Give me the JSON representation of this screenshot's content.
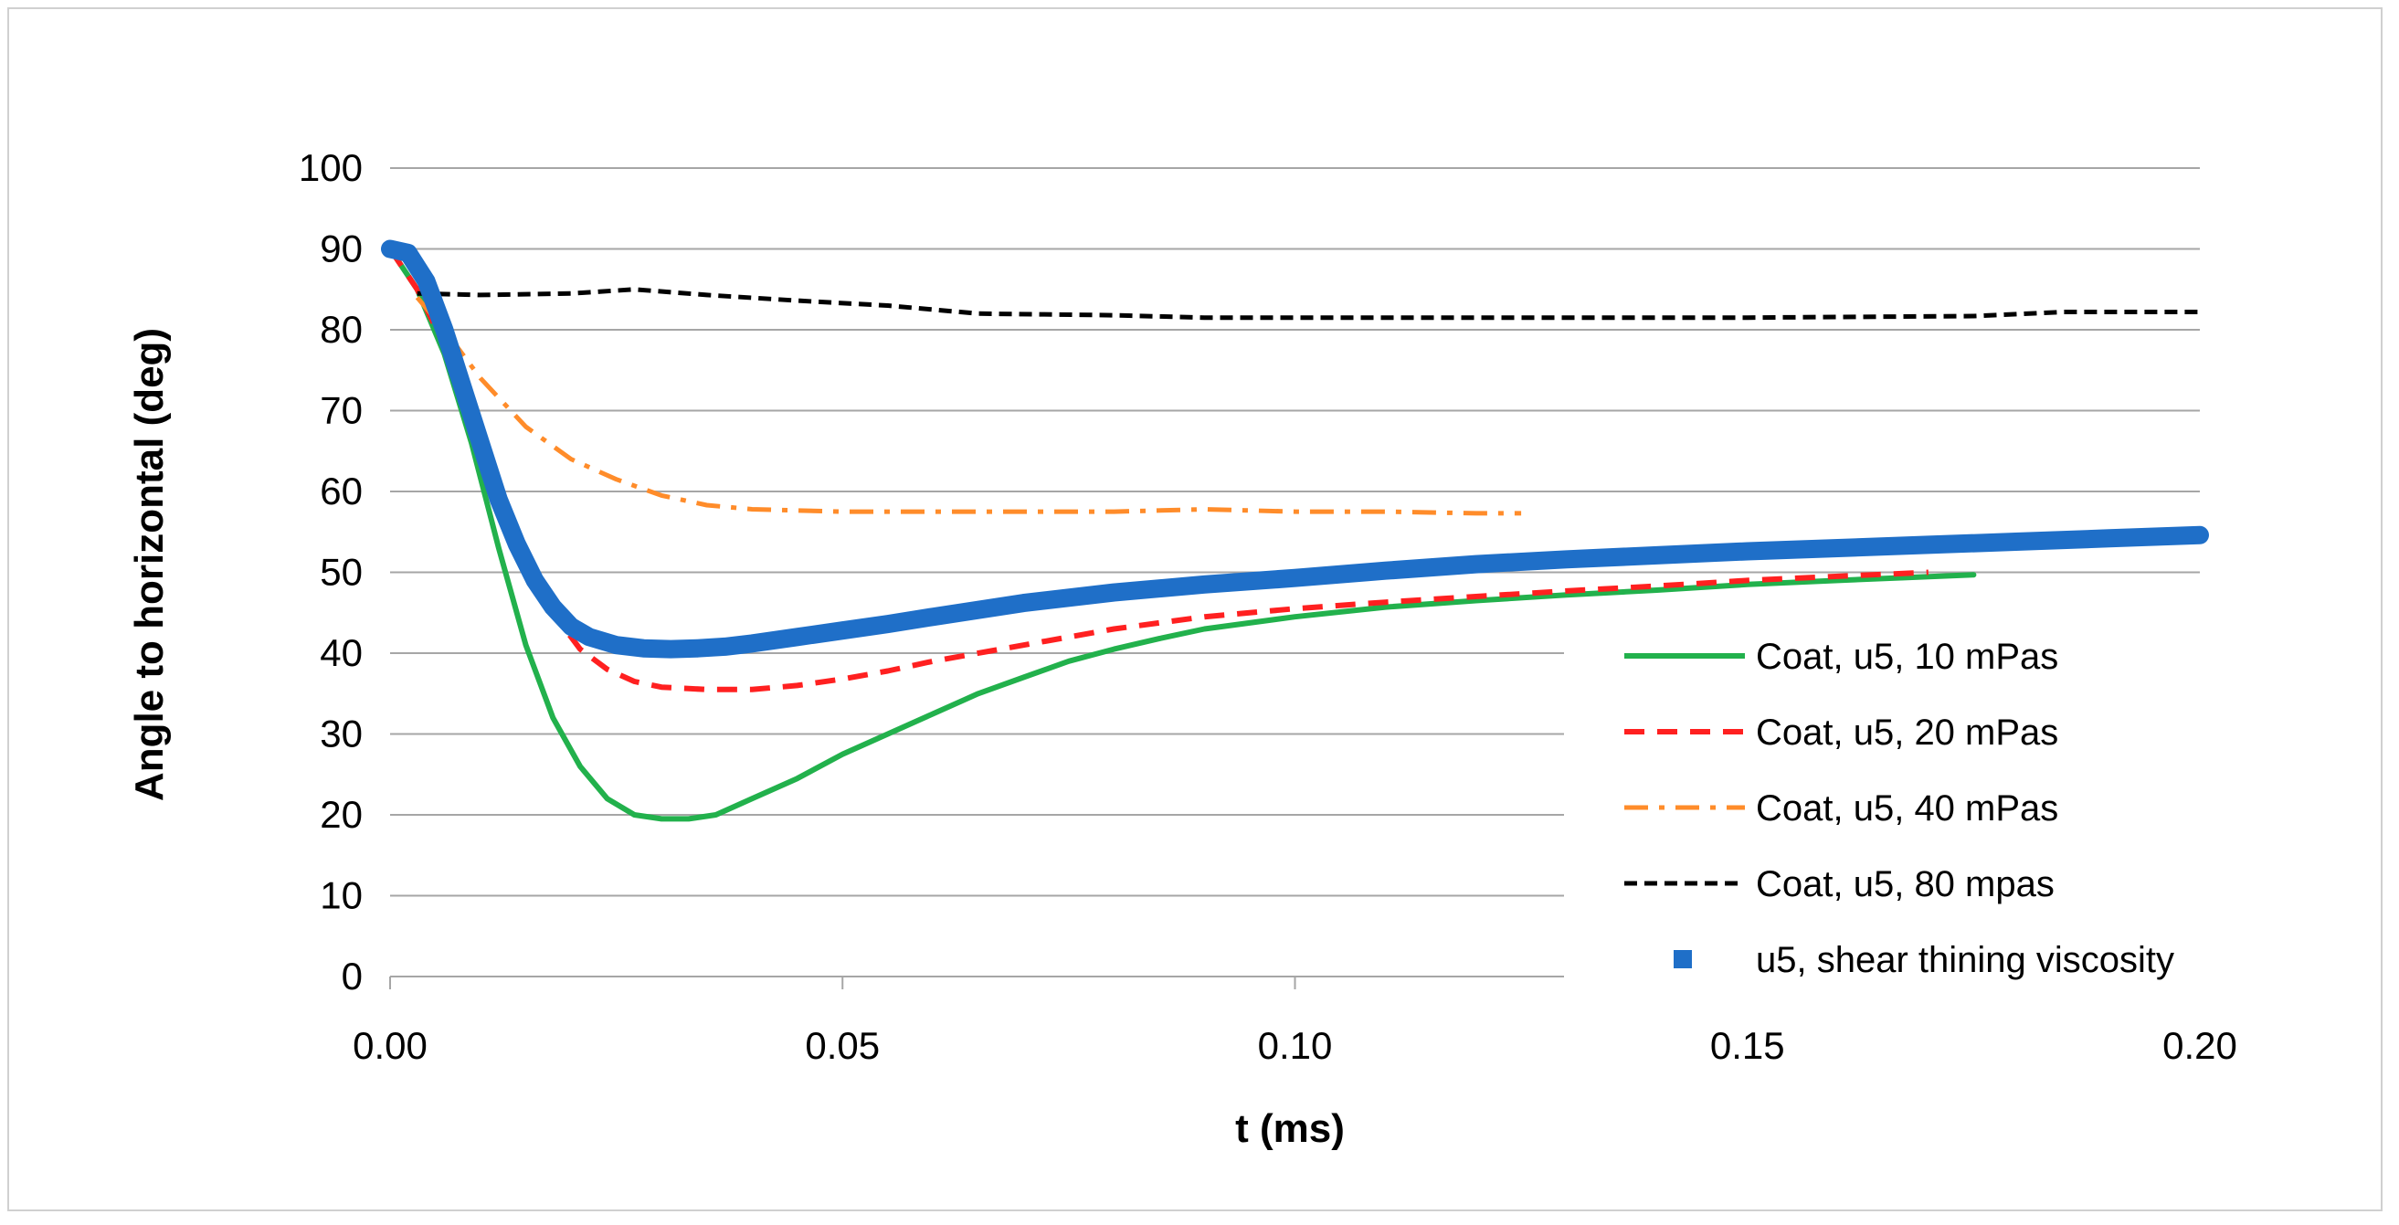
{
  "chart_data": {
    "type": "line",
    "title": "",
    "xlabel": "t (ms)",
    "ylabel": "Angle to horizontal (deg)",
    "xlim": [
      0,
      0.2
    ],
    "ylim": [
      0,
      100
    ],
    "xticks": [
      "0.00",
      "0.05",
      "0.10",
      "0.15",
      "0.20"
    ],
    "xtick_values": [
      0,
      0.05,
      0.1,
      0.15,
      0.2
    ],
    "yticks": [
      "0",
      "10",
      "20",
      "30",
      "40",
      "50",
      "60",
      "70",
      "80",
      "90",
      "100"
    ],
    "ytick_values": [
      0,
      10,
      20,
      30,
      40,
      50,
      60,
      70,
      80,
      90,
      100
    ],
    "grid": "horizontal",
    "legend_position": "bottom-right",
    "series": [
      {
        "name": "Coat, u5, 10 mPas",
        "color": "#22b14c",
        "style": "solid",
        "x": [
          0,
          0.003,
          0.006,
          0.009,
          0.012,
          0.015,
          0.018,
          0.021,
          0.024,
          0.027,
          0.03,
          0.033,
          0.036,
          0.04,
          0.045,
          0.05,
          0.055,
          0.06,
          0.065,
          0.07,
          0.075,
          0.08,
          0.085,
          0.09,
          0.1,
          0.11,
          0.12,
          0.13,
          0.14,
          0.15,
          0.16,
          0.175
        ],
        "y": [
          90,
          85,
          77,
          66,
          53,
          41,
          32,
          26,
          22,
          20,
          19.5,
          19.5,
          20,
          22,
          24.5,
          27.5,
          30,
          32.5,
          35,
          37,
          39,
          40.5,
          41.8,
          43,
          44.5,
          45.7,
          46.5,
          47.2,
          47.8,
          48.5,
          49,
          49.7
        ]
      },
      {
        "name": "Coat, u5, 20 mPas",
        "color": "#ff2020",
        "style": "dashed",
        "x": [
          0,
          0.003,
          0.006,
          0.009,
          0.012,
          0.015,
          0.018,
          0.021,
          0.024,
          0.027,
          0.03,
          0.035,
          0.04,
          0.045,
          0.05,
          0.055,
          0.06,
          0.07,
          0.08,
          0.09,
          0.1,
          0.11,
          0.12,
          0.13,
          0.14,
          0.15,
          0.16,
          0.17
        ],
        "y": [
          90,
          85,
          78,
          70,
          61,
          52,
          45,
          40.5,
          38,
          36.5,
          35.8,
          35.5,
          35.5,
          36,
          36.8,
          37.8,
          39,
          41,
          43,
          44.5,
          45.5,
          46.3,
          47,
          47.7,
          48.3,
          49,
          49.5,
          50
        ]
      },
      {
        "name": "Coat, u5, 40 mPas",
        "color": "#ff8c2a",
        "style": "dashdot",
        "x": [
          0.003,
          0.006,
          0.01,
          0.015,
          0.02,
          0.025,
          0.03,
          0.035,
          0.04,
          0.05,
          0.06,
          0.07,
          0.08,
          0.09,
          0.1,
          0.11,
          0.12,
          0.125
        ],
        "y": [
          84,
          80,
          74,
          68,
          64,
          61.5,
          59.5,
          58.3,
          57.8,
          57.5,
          57.5,
          57.5,
          57.5,
          57.8,
          57.5,
          57.5,
          57.3,
          57.3
        ]
      },
      {
        "name": "Coat, u5, 80 mpas",
        "color": "#000000",
        "style": "shortdash",
        "x": [
          0.003,
          0.01,
          0.02,
          0.027,
          0.035,
          0.045,
          0.055,
          0.065,
          0.08,
          0.09,
          0.1,
          0.115,
          0.13,
          0.15,
          0.175,
          0.185,
          0.2
        ],
        "y": [
          84.5,
          84.3,
          84.5,
          85,
          84.3,
          83.6,
          83,
          82,
          81.8,
          81.5,
          81.5,
          81.5,
          81.5,
          81.5,
          81.7,
          82.2,
          82.2
        ]
      },
      {
        "name": "u5, shear thining viscosity",
        "color": "#1f6fc8",
        "style": "thick",
        "x": [
          0,
          0.002,
          0.004,
          0.006,
          0.008,
          0.01,
          0.012,
          0.014,
          0.016,
          0.018,
          0.02,
          0.022,
          0.025,
          0.028,
          0.031,
          0.034,
          0.037,
          0.04,
          0.045,
          0.05,
          0.055,
          0.06,
          0.07,
          0.08,
          0.09,
          0.1,
          0.11,
          0.12,
          0.13,
          0.14,
          0.15,
          0.16,
          0.17,
          0.18,
          0.19,
          0.2
        ],
        "y": [
          90,
          89.5,
          86,
          80,
          73,
          66,
          59,
          53.5,
          49,
          45.7,
          43.3,
          42,
          41,
          40.6,
          40.5,
          40.6,
          40.8,
          41.2,
          42,
          42.8,
          43.6,
          44.5,
          46.2,
          47.5,
          48.5,
          49.3,
          50.2,
          51,
          51.6,
          52.1,
          52.6,
          53,
          53.4,
          53.8,
          54.2,
          54.6
        ]
      }
    ]
  }
}
